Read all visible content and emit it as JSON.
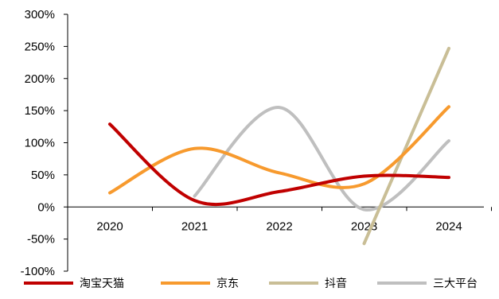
{
  "chart_data": {
    "type": "line",
    "smooth": true,
    "title": "",
    "xlabel": "",
    "ylabel": "",
    "categories": [
      "2020",
      "2021",
      "2022",
      "2023",
      "2024"
    ],
    "y_unit": "%",
    "ylim": [
      -100,
      300
    ],
    "yticks": [
      "300%",
      "250%",
      "200%",
      "150%",
      "100%",
      "50%",
      "0%",
      "-50%",
      "-100%"
    ],
    "grid": false,
    "legend_position": "bottom",
    "series": [
      {
        "name": "淘宝天猫",
        "color": "#C00000",
        "values": [
          129,
          10,
          24,
          48,
          46
        ]
      },
      {
        "name": "京东",
        "color": "#F79A2E",
        "values": [
          22,
          91,
          53,
          36,
          156
        ]
      },
      {
        "name": "抖音",
        "color": "#C9BE96",
        "values": [
          null,
          null,
          null,
          -57,
          247
        ]
      },
      {
        "name": "三大平台",
        "color": "#BFBFBF",
        "values": [
          null,
          17,
          155,
          -4,
          103
        ]
      }
    ]
  }
}
